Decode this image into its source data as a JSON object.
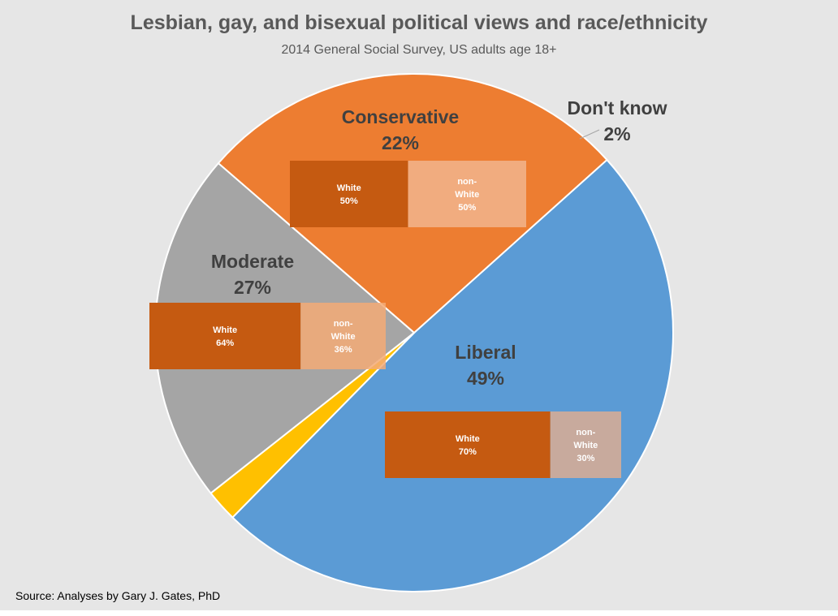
{
  "chart_data": {
    "type": "pie",
    "title": "Lesbian, gay, and bisexual political views and race/ethnicity",
    "subtitle": "2014 General Social Survey, US adults age 18+",
    "source": "Source: Analyses by Gary J. Gates, PhD",
    "slices": [
      {
        "name": "Liberal",
        "value": 49,
        "label": "49%",
        "color": "#5b9bd5",
        "breakdown": [
          {
            "name": "White",
            "value": 70,
            "label_lines": [
              "White",
              "70%"
            ],
            "color": "#c55a11"
          },
          {
            "name": "non-White",
            "value": 30,
            "label_lines": [
              "non-",
              "White",
              "30%"
            ],
            "color": "#dcad93"
          }
        ]
      },
      {
        "name": "Moderate",
        "value": 27,
        "label": "27%",
        "color": "#ed7d31",
        "breakdown": [
          {
            "name": "White",
            "value": 64,
            "label_lines": [
              "White",
              "64%"
            ],
            "color": "#c55a11"
          },
          {
            "name": "non-White",
            "value": 36,
            "label_lines": [
              "non-",
              "White",
              "36%"
            ],
            "color": "#f3aa75"
          }
        ]
      },
      {
        "name": "Conservative",
        "value": 22,
        "label": "22%",
        "color": "#a5a5a5",
        "breakdown": [
          {
            "name": "White",
            "value": 50,
            "label_lines": [
              "White",
              "50%"
            ],
            "color": "#c55a11"
          },
          {
            "name": "non-White",
            "value": 50,
            "label_lines": [
              "non-",
              "White",
              "50%"
            ],
            "color": "#f1b48d"
          }
        ]
      },
      {
        "name": "Don't know",
        "value": 2,
        "label": "2%",
        "color": "#ffc000",
        "breakdown": []
      }
    ]
  }
}
